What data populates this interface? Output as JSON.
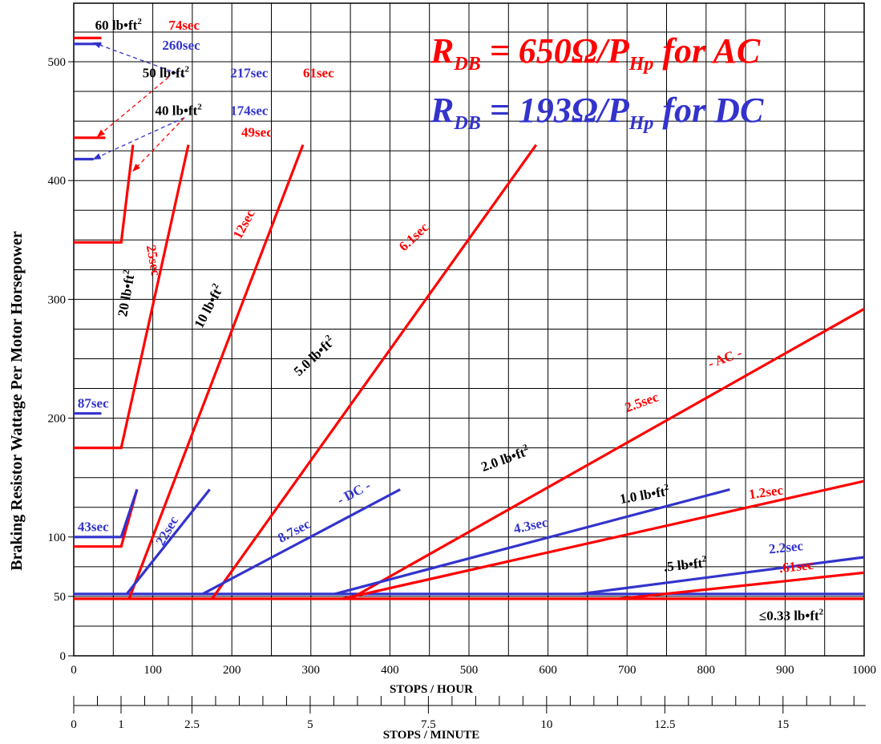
{
  "colors": {
    "ac": "#ff0000",
    "dc": "#3333cc",
    "text": "#000000",
    "grid": "#000000",
    "background": "#ffffff"
  },
  "chart_data": {
    "type": "line",
    "ylabel": "Braking Resistor Wattage Per Motor Horsepower",
    "xlabel": "STOPS / HOUR",
    "x2label": "STOPS / MINUTE",
    "xlim": [
      0,
      1000
    ],
    "ylim": [
      0,
      540
    ],
    "x_ticks": [
      0,
      100,
      200,
      300,
      400,
      500,
      600,
      700,
      800,
      900,
      1000
    ],
    "y_ticks": [
      0,
      100,
      200,
      300,
      400,
      500
    ],
    "y_extra_tick": 50,
    "grid": true,
    "x2_ticks": [
      {
        "label": "0",
        "value": 0
      },
      {
        "label": "1",
        "value": 1
      },
      {
        "label": "2.5",
        "value": 2.5
      },
      {
        "label": "5",
        "value": 5
      },
      {
        "label": "7.5",
        "value": 7.5
      },
      {
        "label": "10",
        "value": 10
      },
      {
        "label": "12.5",
        "value": 12.5
      },
      {
        "label": "15",
        "value": 15
      }
    ],
    "formulas": [
      {
        "text_main": "R",
        "text_sub": "DB",
        "text_mid": " = 650Ω/P",
        "text_sub2": "Hp",
        "text_tail": "   for AC",
        "color": "ac"
      },
      {
        "text_main": "R",
        "text_sub": "DB",
        "text_mid": " = 193Ω/P",
        "text_sub2": "Hp",
        "text_tail": "   for DC",
        "color": "dc"
      }
    ],
    "series": [
      {
        "system": "AC",
        "points": [
          [
            0,
            48
          ],
          [
            1000,
            48
          ]
        ]
      },
      {
        "system": "DC",
        "points": [
          [
            0,
            52
          ],
          [
            1000,
            52
          ]
        ]
      },
      {
        "system": "AC",
        "points": [
          [
            0,
            92
          ],
          [
            60,
            92
          ],
          [
            80,
            140
          ]
        ]
      },
      {
        "system": "DC",
        "points": [
          [
            0,
            100
          ],
          [
            60,
            100
          ],
          [
            80,
            140
          ]
        ]
      },
      {
        "system": "AC",
        "points": [
          [
            0,
            175
          ],
          [
            60,
            175
          ],
          [
            145,
            430
          ]
        ]
      },
      {
        "system": "AC",
        "points": [
          [
            0,
            348
          ],
          [
            60,
            348
          ],
          [
            75,
            430
          ]
        ]
      },
      {
        "system": "AC",
        "points": [
          [
            70,
            48
          ],
          [
            290,
            430
          ]
        ]
      },
      {
        "system": "DC",
        "points": [
          [
            67,
            52
          ],
          [
            172,
            140
          ]
        ]
      },
      {
        "system": "AC",
        "points": [
          [
            175,
            48
          ],
          [
            585,
            430
          ]
        ]
      },
      {
        "system": "DC",
        "points": [
          [
            163,
            52
          ],
          [
            413,
            140
          ]
        ]
      },
      {
        "system": "AC",
        "points": [
          [
            350,
            48
          ],
          [
            1000,
            292
          ]
        ]
      },
      {
        "system": "DC",
        "points": [
          [
            330,
            52
          ],
          [
            830,
            140
          ]
        ]
      },
      {
        "system": "AC",
        "points": [
          [
            340,
            48
          ],
          [
            1000,
            147
          ]
        ]
      },
      {
        "system": "DC",
        "points": [
          [
            640,
            52
          ],
          [
            1000,
            83
          ]
        ]
      },
      {
        "system": "AC",
        "points": [
          [
            690,
            48
          ],
          [
            1000,
            70
          ]
        ]
      },
      {
        "system": "AC",
        "points": [
          [
            0,
            520
          ],
          [
            35,
            520
          ]
        ]
      },
      {
        "system": "DC",
        "points": [
          [
            0,
            515
          ],
          [
            35,
            515
          ]
        ]
      },
      {
        "system": "AC",
        "points": [
          [
            0,
            436
          ],
          [
            40,
            436
          ]
        ]
      },
      {
        "system": "DC",
        "points": [
          [
            0,
            418
          ],
          [
            25,
            418
          ]
        ]
      },
      {
        "system": "DC",
        "points": [
          [
            0,
            204
          ],
          [
            35,
            204
          ]
        ]
      }
    ],
    "arrows": [
      {
        "system": "DC",
        "from": [
          140,
          488
        ],
        "to": [
          25,
          516
        ]
      },
      {
        "system": "AC",
        "from": [
          120,
          487
        ],
        "to": [
          30,
          437
        ]
      },
      {
        "system": "DC",
        "from": [
          140,
          453
        ],
        "to": [
          25,
          418
        ]
      },
      {
        "system": "AC",
        "from": [
          140,
          453
        ],
        "to": [
          75,
          408
        ]
      }
    ],
    "annotations": [
      {
        "text": "60 lb•ft",
        "sup": "2",
        "system": "black",
        "x": 27,
        "y": 527,
        "rot": 0
      },
      {
        "text": "74sec",
        "system": "AC",
        "x": 120,
        "y": 527,
        "rot": 0
      },
      {
        "text": "260sec",
        "system": "DC",
        "x": 112,
        "y": 510,
        "rot": 0
      },
      {
        "text": "50 lb•ft",
        "sup": "2",
        "system": "black",
        "x": 87,
        "y": 487,
        "rot": 0
      },
      {
        "text": "217sec",
        "system": "DC",
        "x": 198,
        "y": 487,
        "rot": 0
      },
      {
        "text": "61sec",
        "system": "AC",
        "x": 290,
        "y": 487,
        "rot": 0
      },
      {
        "text": "40 lb•ft",
        "sup": "2",
        "system": "black",
        "x": 103,
        "y": 455,
        "rot": 0
      },
      {
        "text": "174sec",
        "system": "DC",
        "x": 198,
        "y": 455,
        "rot": 0
      },
      {
        "text": "49sec",
        "system": "AC",
        "x": 212,
        "y": 437,
        "rot": 0
      },
      {
        "text": "25sec",
        "system": "AC",
        "x": 92,
        "y": 345,
        "rot": 80
      },
      {
        "text": "20 lb•ft",
        "sup": "2",
        "system": "black",
        "x": 67,
        "y": 285,
        "rot": -80
      },
      {
        "text": "12sec",
        "system": "AC",
        "x": 211,
        "y": 350,
        "rot": -62
      },
      {
        "text": "10 lb•ft",
        "sup": "2",
        "system": "black",
        "x": 162,
        "y": 275,
        "rot": -62
      },
      {
        "text": "6.1sec",
        "system": "AC",
        "x": 418,
        "y": 340,
        "rot": -43
      },
      {
        "text": "5.0 lb•ft",
        "sup": "2",
        "system": "black",
        "x": 285,
        "y": 235,
        "rot": -43
      },
      {
        "text": "87sec",
        "system": "DC",
        "x": 5,
        "y": 209,
        "rot": 0
      },
      {
        "text": "43sec",
        "system": "DC",
        "x": 5,
        "y": 105,
        "rot": 0
      },
      {
        "text": "22sec",
        "system": "DC",
        "x": 113,
        "y": 92,
        "rot": -60
      },
      {
        "text": "8.7sec",
        "system": "DC",
        "x": 262,
        "y": 95,
        "rot": -28
      },
      {
        "text": "- DC -",
        "system": "DC",
        "x": 337,
        "y": 127,
        "rot": -28
      },
      {
        "text": "2.5sec",
        "system": "AC",
        "x": 700,
        "y": 205,
        "rot": -20
      },
      {
        "text": "- AC -",
        "system": "AC",
        "x": 805,
        "y": 242,
        "rot": -20
      },
      {
        "text": "2.0 lb•ft",
        "sup": "2",
        "system": "black",
        "x": 518,
        "y": 155,
        "rot": -20
      },
      {
        "text": "4.3sec",
        "system": "DC",
        "x": 558,
        "y": 103,
        "rot": -12
      },
      {
        "text": "1.0 lb•ft",
        "sup": "2",
        "system": "black",
        "x": 692,
        "y": 128,
        "rot": -10
      },
      {
        "text": "1.2sec",
        "system": "AC",
        "x": 855,
        "y": 132,
        "rot": -8
      },
      {
        "text": "2.2sec",
        "system": "DC",
        "x": 880,
        "y": 86,
        "rot": -6
      },
      {
        "text": ".5 lb•ft",
        "sup": "2",
        "system": "black",
        "x": 747,
        "y": 71,
        "rot": -6
      },
      {
        "text": ".61sec",
        "system": "AC",
        "x": 893,
        "y": 70,
        "rot": -6
      },
      {
        "text": "≤0.33 lb•ft",
        "sup": "2",
        "system": "black",
        "x": 867,
        "y": 30,
        "rot": 0
      }
    ]
  }
}
